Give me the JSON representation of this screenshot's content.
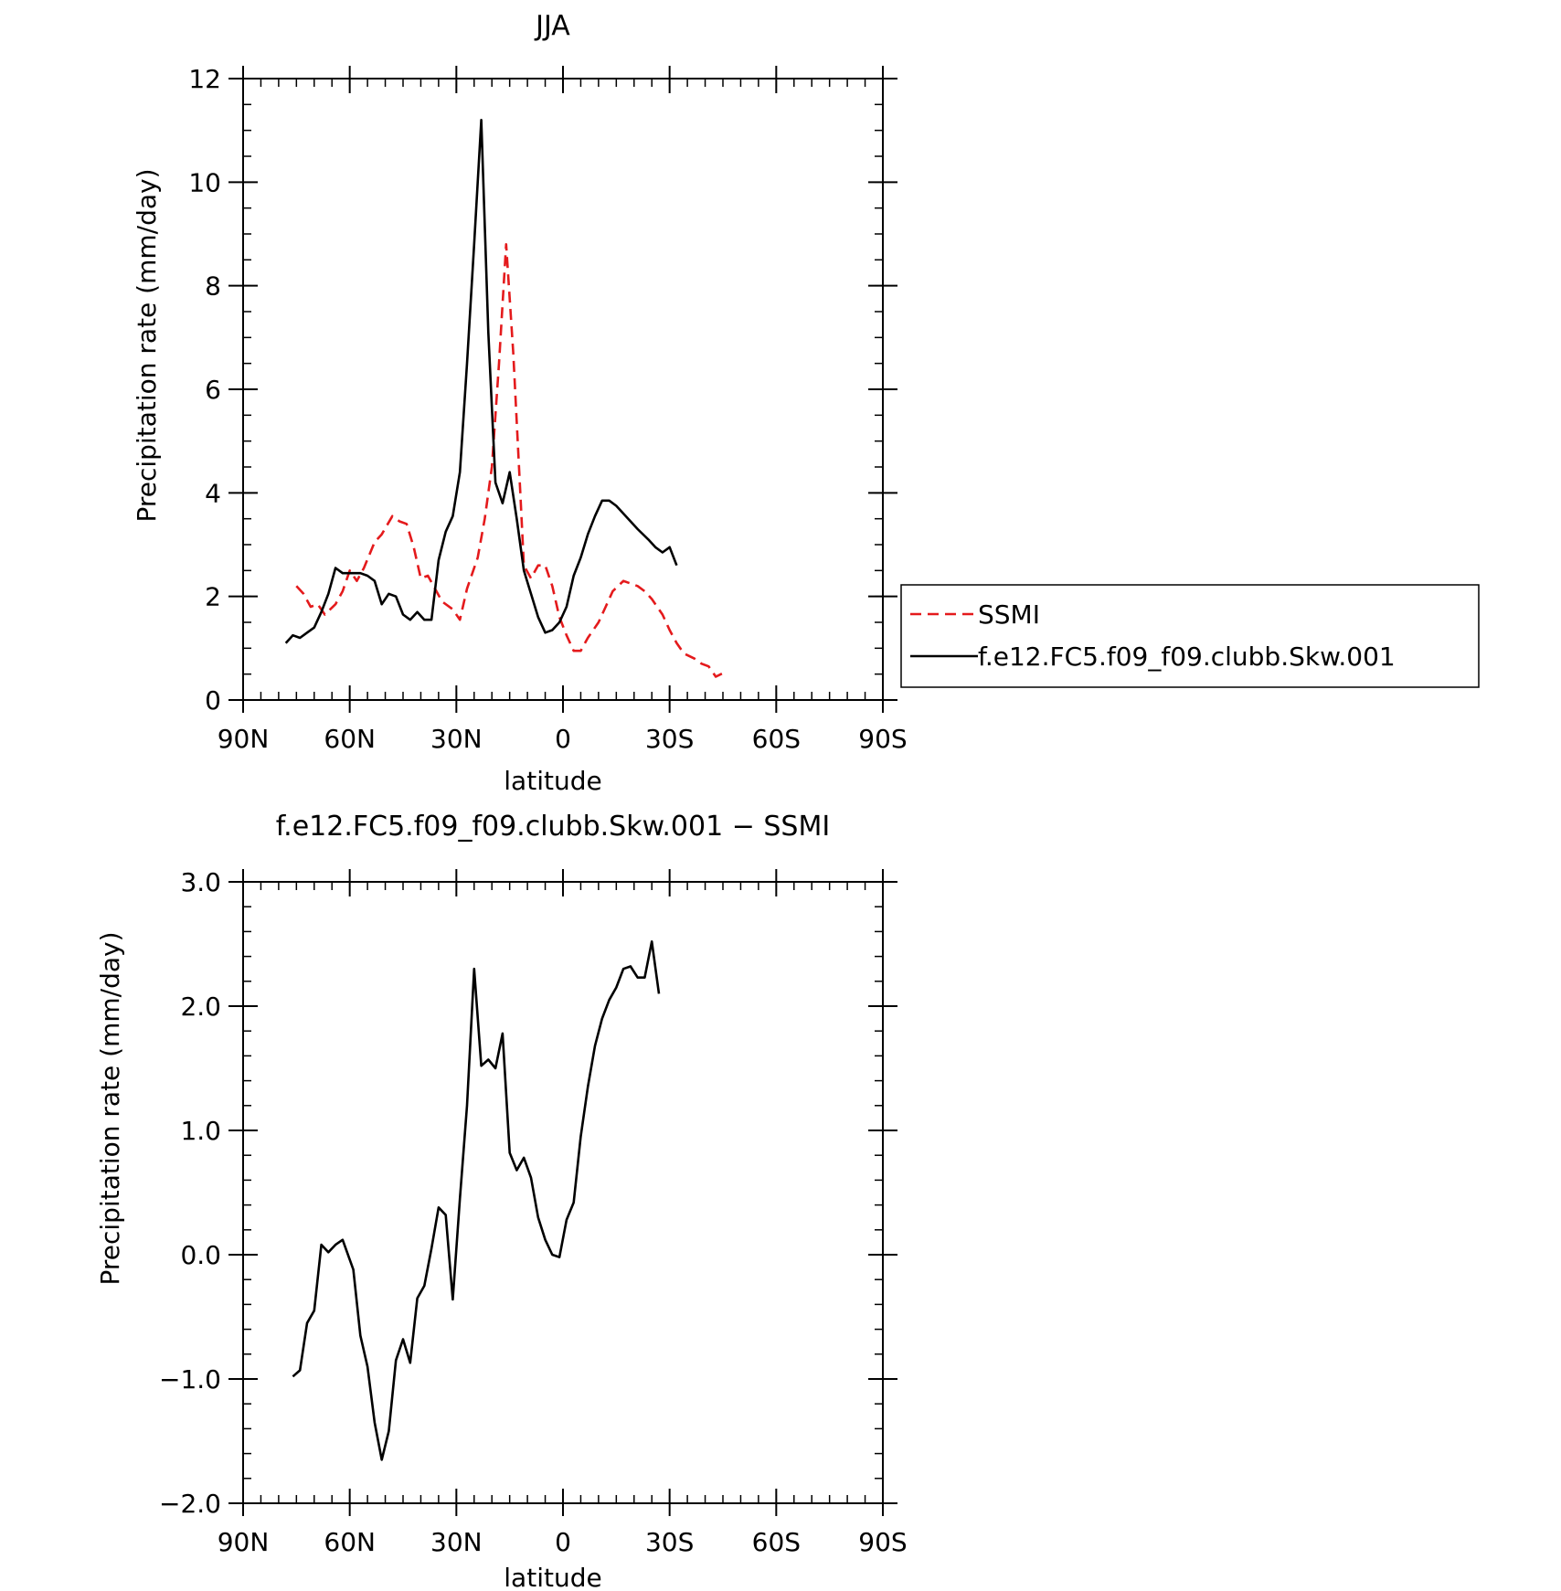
{
  "chart_data": [
    {
      "type": "line",
      "title": "JJA",
      "xlabel": "latitude",
      "ylabel": "Precipitation rate (mm/day)",
      "xlim": [
        90,
        -90
      ],
      "ylim": [
        0,
        12
      ],
      "x_ticks": [
        90,
        60,
        30,
        0,
        -30,
        -60,
        -90
      ],
      "x_tick_labels": [
        "90N",
        "60N",
        "30N",
        "0",
        "30S",
        "60S",
        "90S"
      ],
      "y_ticks": [
        0,
        2,
        4,
        6,
        8,
        10,
        12
      ],
      "y_tick_labels": [
        "0",
        "2",
        "4",
        "6",
        "8",
        "10",
        "12"
      ],
      "legend_position": "right",
      "series": [
        {
          "name": "SSMI",
          "color": "#e41a1c",
          "dash": "dashed",
          "points": [
            [
              75,
              2.2
            ],
            [
              73,
              2.05
            ],
            [
              71,
              1.8
            ],
            [
              69,
              1.85
            ],
            [
              67,
              1.65
            ],
            [
              64,
              1.85
            ],
            [
              62,
              2.1
            ],
            [
              60,
              2.5
            ],
            [
              58,
              2.3
            ],
            [
              56,
              2.55
            ],
            [
              53,
              3.05
            ],
            [
              51,
              3.2
            ],
            [
              48,
              3.55
            ],
            [
              46,
              3.45
            ],
            [
              44,
              3.4
            ],
            [
              42,
              2.95
            ],
            [
              40,
              2.35
            ],
            [
              38,
              2.4
            ],
            [
              36,
              2.15
            ],
            [
              34,
              1.9
            ],
            [
              31,
              1.75
            ],
            [
              29,
              1.55
            ],
            [
              27,
              2.15
            ],
            [
              24,
              2.75
            ],
            [
              22,
              3.5
            ],
            [
              20,
              4.5
            ],
            [
              18,
              6.5
            ],
            [
              16,
              8.8
            ],
            [
              14,
              6.7
            ],
            [
              12,
              4.0
            ],
            [
              11,
              2.6
            ],
            [
              9,
              2.35
            ],
            [
              7,
              2.6
            ],
            [
              5,
              2.6
            ],
            [
              3,
              2.2
            ],
            [
              1,
              1.6
            ],
            [
              -1,
              1.25
            ],
            [
              -3,
              0.95
            ],
            [
              -5,
              0.95
            ],
            [
              -7,
              1.2
            ],
            [
              -10,
              1.5
            ],
            [
              -12,
              1.8
            ],
            [
              -14,
              2.1
            ],
            [
              -17,
              2.3
            ],
            [
              -19,
              2.25
            ],
            [
              -21,
              2.2
            ],
            [
              -23,
              2.1
            ],
            [
              -25,
              1.95
            ],
            [
              -28,
              1.65
            ],
            [
              -30,
              1.35
            ],
            [
              -32,
              1.1
            ],
            [
              -34,
              0.9
            ],
            [
              -37,
              0.8
            ],
            [
              -39,
              0.7
            ],
            [
              -41,
              0.65
            ],
            [
              -43,
              0.45
            ],
            [
              -46,
              0.55
            ]
          ]
        },
        {
          "name": "f.e12.FC5.f09_f09.clubb.Skw.001",
          "color": "#000000",
          "dash": "solid",
          "points": [
            [
              78,
              1.1
            ],
            [
              76,
              1.25
            ],
            [
              74,
              1.2
            ],
            [
              72,
              1.3
            ],
            [
              70,
              1.4
            ],
            [
              68,
              1.7
            ],
            [
              66,
              2.05
            ],
            [
              64,
              2.55
            ],
            [
              62,
              2.45
            ],
            [
              59,
              2.45
            ],
            [
              57,
              2.45
            ],
            [
              55,
              2.4
            ],
            [
              53,
              2.3
            ],
            [
              51,
              1.85
            ],
            [
              49,
              2.05
            ],
            [
              47,
              2.0
            ],
            [
              45,
              1.65
            ],
            [
              43,
              1.55
            ],
            [
              41,
              1.7
            ],
            [
              39,
              1.55
            ],
            [
              37,
              1.55
            ],
            [
              35,
              2.7
            ],
            [
              33,
              3.25
            ],
            [
              31,
              3.55
            ],
            [
              29,
              4.4
            ],
            [
              27,
              6.5
            ],
            [
              25,
              8.8
            ],
            [
              23,
              11.2
            ],
            [
              21,
              7.1
            ],
            [
              19,
              4.2
            ],
            [
              17,
              3.8
            ],
            [
              15,
              4.4
            ],
            [
              13,
              3.5
            ],
            [
              11,
              2.5
            ],
            [
              9,
              2.05
            ],
            [
              7,
              1.6
            ],
            [
              5,
              1.3
            ],
            [
              3,
              1.35
            ],
            [
              1,
              1.5
            ],
            [
              -1,
              1.8
            ],
            [
              -3,
              2.4
            ],
            [
              -5,
              2.75
            ],
            [
              -7,
              3.2
            ],
            [
              -9,
              3.55
            ],
            [
              -11,
              3.85
            ],
            [
              -13,
              3.85
            ],
            [
              -15,
              3.75
            ],
            [
              -17,
              3.6
            ],
            [
              -19,
              3.45
            ],
            [
              -21,
              3.3
            ],
            [
              -24,
              3.1
            ],
            [
              -26,
              2.95
            ],
            [
              -28,
              2.85
            ],
            [
              -30,
              2.95
            ],
            [
              -32,
              2.6
            ]
          ]
        }
      ]
    },
    {
      "type": "line",
      "title": "f.e12.FC5.f09_f09.clubb.Skw.001 − SSMI",
      "xlabel": "latitude",
      "ylabel": "Precipitation rate (mm/day)",
      "xlim": [
        90,
        -90
      ],
      "ylim": [
        -2.0,
        3.0
      ],
      "x_ticks": [
        90,
        60,
        30,
        0,
        -30,
        -60,
        -90
      ],
      "x_tick_labels": [
        "90N",
        "60N",
        "30N",
        "0",
        "30S",
        "60S",
        "90S"
      ],
      "y_ticks": [
        -2.0,
        -1.0,
        0.0,
        1.0,
        2.0,
        3.0
      ],
      "y_tick_labels": [
        "−2.0",
        "−1.0",
        "0.0",
        "1.0",
        "2.0",
        "3.0"
      ],
      "series": [
        {
          "color": "#000000",
          "dash": "solid",
          "points": [
            [
              76,
              -0.98
            ],
            [
              74,
              -0.93
            ],
            [
              72,
              -0.55
            ],
            [
              70,
              -0.45
            ],
            [
              68,
              0.08
            ],
            [
              66,
              0.02
            ],
            [
              64,
              0.08
            ],
            [
              62,
              0.12
            ],
            [
              59,
              -0.12
            ],
            [
              57,
              -0.65
            ],
            [
              55,
              -0.9
            ],
            [
              53,
              -1.35
            ],
            [
              51,
              -1.65
            ],
            [
              49,
              -1.42
            ],
            [
              47,
              -0.85
            ],
            [
              45,
              -0.68
            ],
            [
              43,
              -0.87
            ],
            [
              41,
              -0.35
            ],
            [
              39,
              -0.25
            ],
            [
              37,
              0.05
            ],
            [
              35,
              0.38
            ],
            [
              33,
              0.32
            ],
            [
              31,
              -0.36
            ],
            [
              29,
              0.45
            ],
            [
              27,
              1.2
            ],
            [
              25,
              2.3
            ],
            [
              23,
              1.52
            ],
            [
              21,
              1.57
            ],
            [
              19,
              1.5
            ],
            [
              17,
              1.78
            ],
            [
              15,
              0.82
            ],
            [
              13,
              0.68
            ],
            [
              11,
              0.78
            ],
            [
              9,
              0.62
            ],
            [
              7,
              0.3
            ],
            [
              5,
              0.12
            ],
            [
              3,
              0.0
            ],
            [
              1,
              -0.02
            ],
            [
              -1,
              0.28
            ],
            [
              -3,
              0.42
            ],
            [
              -5,
              0.95
            ],
            [
              -7,
              1.35
            ],
            [
              -9,
              1.68
            ],
            [
              -11,
              1.9
            ],
            [
              -13,
              2.05
            ],
            [
              -15,
              2.15
            ],
            [
              -17,
              2.3
            ],
            [
              -19,
              2.32
            ],
            [
              -21,
              2.23
            ],
            [
              -23,
              2.23
            ],
            [
              -25,
              2.52
            ],
            [
              -27,
              2.1
            ]
          ]
        }
      ]
    }
  ]
}
